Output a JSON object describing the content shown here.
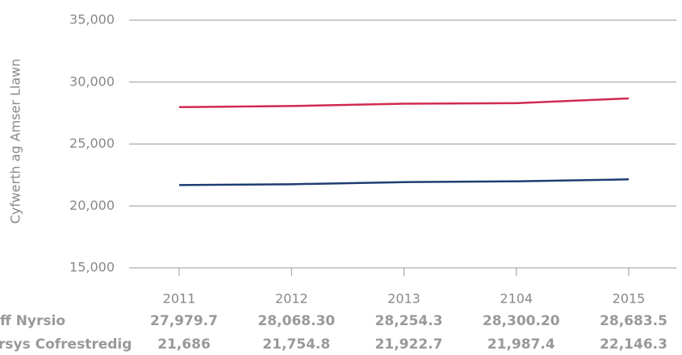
{
  "chart_data": {
    "type": "line",
    "y_label": "Cyfwerth ag Amser Llawn",
    "categories": [
      "2011",
      "2012",
      "2013",
      "2104",
      "2015"
    ],
    "series": [
      {
        "name": "ff Nyrsio",
        "color": "#d12a50",
        "values": [
          27979.7,
          28068.3,
          28254.3,
          28300.2,
          28683.5
        ],
        "value_labels": [
          "27,979.7",
          "28,068.30",
          "28,254.3",
          "28,300.20",
          "28,683.5"
        ]
      },
      {
        "name": "rsys Cofrestredig",
        "color": "#1f3d73",
        "values": [
          21686,
          21754.8,
          21922.7,
          21987.4,
          22146.3
        ],
        "value_labels": [
          "21,686",
          "21,754.8",
          "21,922.7",
          "21,987.4",
          "22,146.3"
        ]
      }
    ],
    "ylim": [
      15000,
      35000
    ],
    "yticks": [
      {
        "value": 15000,
        "label": "15,000"
      },
      {
        "value": 20000,
        "label": "20,000"
      },
      {
        "value": 25000,
        "label": "25,000"
      },
      {
        "value": 30000,
        "label": "30,000"
      },
      {
        "value": 35000,
        "label": "35,000"
      }
    ],
    "grid": true
  }
}
